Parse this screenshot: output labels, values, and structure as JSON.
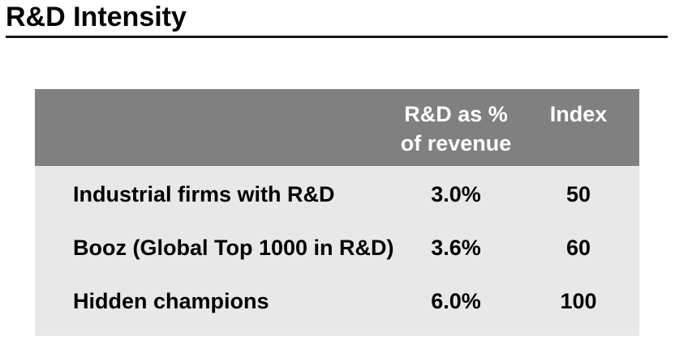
{
  "title": "R&D Intensity",
  "table": {
    "columns": {
      "rd_pct_header": "R&D as %\nof revenue",
      "index_header": "Index"
    },
    "rows": [
      {
        "label": "Industrial firms with R&D",
        "rd_pct": "3.0%",
        "index": "50"
      },
      {
        "label": "Booz (Global Top 1000 in R&D)",
        "rd_pct": "3.6%",
        "index": "60"
      },
      {
        "label": "Hidden champions",
        "rd_pct": "6.0%",
        "index": "100"
      }
    ]
  },
  "colors": {
    "header_bg": "#808080",
    "body_bg": "#e8e8e8",
    "header_text": "#ffffff",
    "body_text": "#000000",
    "title_rule": "#161616"
  }
}
